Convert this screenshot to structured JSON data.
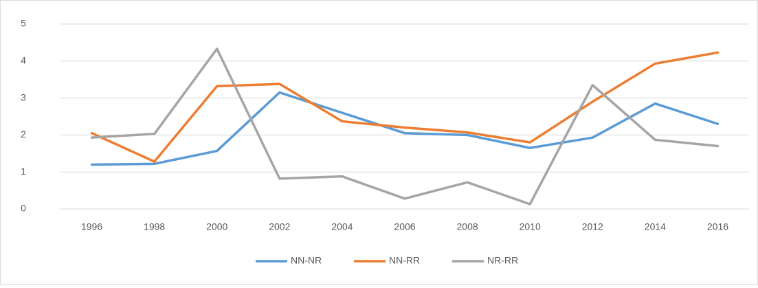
{
  "chart_data": {
    "type": "line",
    "categories": [
      "1996",
      "1998",
      "2000",
      "2002",
      "2004",
      "2006",
      "2008",
      "2010",
      "2012",
      "2014",
      "2016"
    ],
    "series": [
      {
        "name": "NN-NR",
        "color": "#5b9bd5",
        "values": [
          1.2,
          1.22,
          1.57,
          3.15,
          2.6,
          2.05,
          2.0,
          1.65,
          1.93,
          2.85,
          2.3
        ]
      },
      {
        "name": "NN-RR",
        "color": "#ed7d31",
        "values": [
          2.05,
          1.28,
          3.32,
          3.38,
          2.37,
          2.2,
          2.07,
          1.8,
          2.9,
          3.93,
          4.23
        ]
      },
      {
        "name": "NR-RR",
        "color": "#a5a5a5",
        "values": [
          1.93,
          2.03,
          4.33,
          0.82,
          0.88,
          0.28,
          0.72,
          0.13,
          3.35,
          1.87,
          1.7
        ]
      }
    ],
    "ylim": [
      0,
      5
    ],
    "yticks": [
      0,
      1,
      2,
      3,
      4,
      5
    ],
    "grid": true,
    "legend": "bottom"
  }
}
